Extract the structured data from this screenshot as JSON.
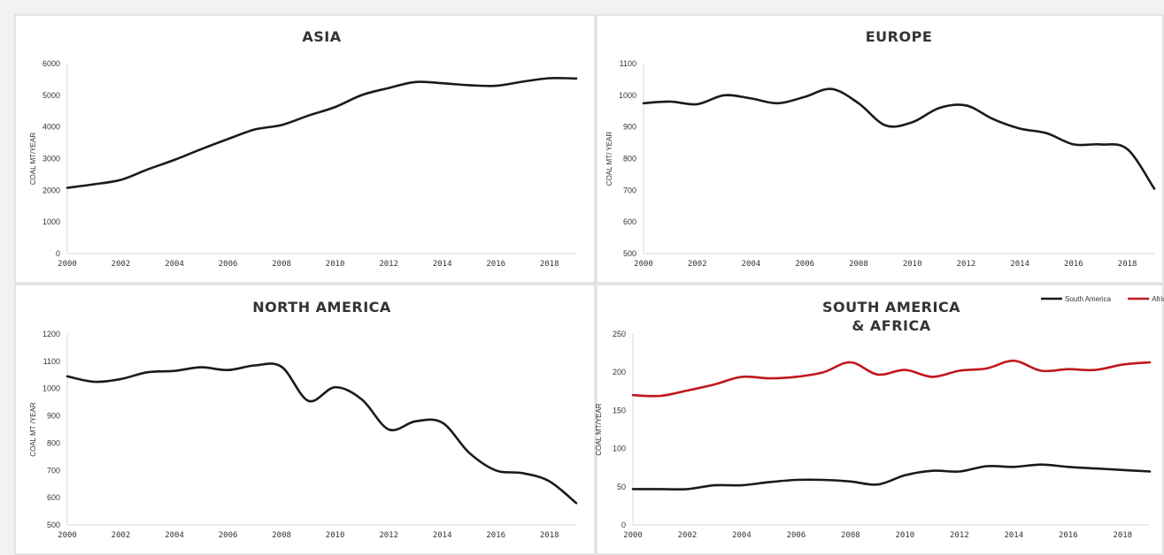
{
  "chart_data": [
    {
      "type": "line",
      "title": "ASIA",
      "ylabel": "COAL MT/YEAR",
      "ylim": [
        0,
        6000
      ],
      "yticks": [
        0,
        1000,
        2000,
        3000,
        4000,
        5000,
        6000
      ],
      "xticks": [
        "2000",
        "2002",
        "2004",
        "2006",
        "2008",
        "2010",
        "2012",
        "2014",
        "2016",
        "2018"
      ],
      "x": [
        2000,
        2001,
        2002,
        2003,
        2004,
        2005,
        2006,
        2007,
        2008,
        2009,
        2010,
        2011,
        2012,
        2013,
        2014,
        2015,
        2016,
        2017,
        2018,
        2019
      ],
      "series": [
        {
          "color": "#1a1a1a",
          "values": [
            2080,
            2190,
            2330,
            2660,
            2960,
            3300,
            3620,
            3920,
            4060,
            4360,
            4630,
            5010,
            5230,
            5420,
            5380,
            5320,
            5300,
            5430,
            5540,
            5530
          ]
        }
      ]
    },
    {
      "type": "line",
      "title": "EUROPE",
      "ylabel": "COAL MT/ YEAR",
      "ylim": [
        500,
        1100
      ],
      "yticks": [
        500,
        600,
        700,
        800,
        900,
        1000,
        1100
      ],
      "xticks": [
        "2000",
        "2002",
        "2004",
        "2006",
        "2008",
        "2010",
        "2012",
        "2014",
        "2016",
        "2018"
      ],
      "x": [
        2000,
        2001,
        2002,
        2003,
        2004,
        2005,
        2006,
        2007,
        2008,
        2009,
        2010,
        2011,
        2012,
        2013,
        2014,
        2015,
        2016,
        2017,
        2018,
        2019
      ],
      "series": [
        {
          "color": "#1a1a1a",
          "values": [
            975,
            980,
            972,
            1000,
            990,
            975,
            995,
            1020,
            975,
            905,
            915,
            960,
            968,
            925,
            895,
            880,
            845,
            845,
            830,
            705
          ]
        }
      ]
    },
    {
      "type": "line",
      "title": "NORTH AMERICA",
      "ylabel": "COAL MT /YEAR",
      "ylim": [
        500,
        1200
      ],
      "yticks": [
        500,
        600,
        700,
        800,
        900,
        1000,
        1100,
        1200
      ],
      "xticks": [
        "2000",
        "2002",
        "2004",
        "2006",
        "2008",
        "2010",
        "2012",
        "2014",
        "2016",
        "2018"
      ],
      "x": [
        2000,
        2001,
        2002,
        2003,
        2004,
        2005,
        2006,
        2007,
        2008,
        2009,
        2010,
        2011,
        2012,
        2013,
        2014,
        2015,
        2016,
        2017,
        2018,
        2019
      ],
      "series": [
        {
          "color": "#1a1a1a",
          "values": [
            1045,
            1025,
            1035,
            1060,
            1065,
            1078,
            1068,
            1085,
            1080,
            955,
            1005,
            960,
            850,
            880,
            875,
            765,
            700,
            690,
            660,
            580
          ]
        }
      ]
    },
    {
      "type": "line",
      "title": [
        "SOUTH AMERICA",
        "& AFRICA"
      ],
      "ylabel": "COAL MT/YEAR",
      "ylim": [
        0,
        250
      ],
      "yticks": [
        0,
        50,
        100,
        150,
        200,
        250
      ],
      "xticks": [
        "2000",
        "2002",
        "2004",
        "2006",
        "2008",
        "2010",
        "2012",
        "2014",
        "2016",
        "2018"
      ],
      "x": [
        2000,
        2001,
        2002,
        2003,
        2004,
        2005,
        2006,
        2007,
        2008,
        2009,
        2010,
        2011,
        2012,
        2013,
        2014,
        2015,
        2016,
        2017,
        2018,
        2019
      ],
      "legend": "top-right",
      "series": [
        {
          "name": "South America",
          "color": "#1a1a1a",
          "values": [
            47,
            47,
            47,
            52,
            52,
            56,
            59,
            59,
            57,
            53,
            65,
            71,
            70,
            77,
            76,
            79,
            76,
            74,
            72,
            70
          ]
        },
        {
          "name": "Africa",
          "color": "#c0171c",
          "values": [
            170,
            169,
            176,
            184,
            194,
            192,
            194,
            200,
            213,
            197,
            203,
            194,
            202,
            205,
            215,
            202,
            204,
            203,
            210,
            213
          ]
        }
      ]
    }
  ]
}
